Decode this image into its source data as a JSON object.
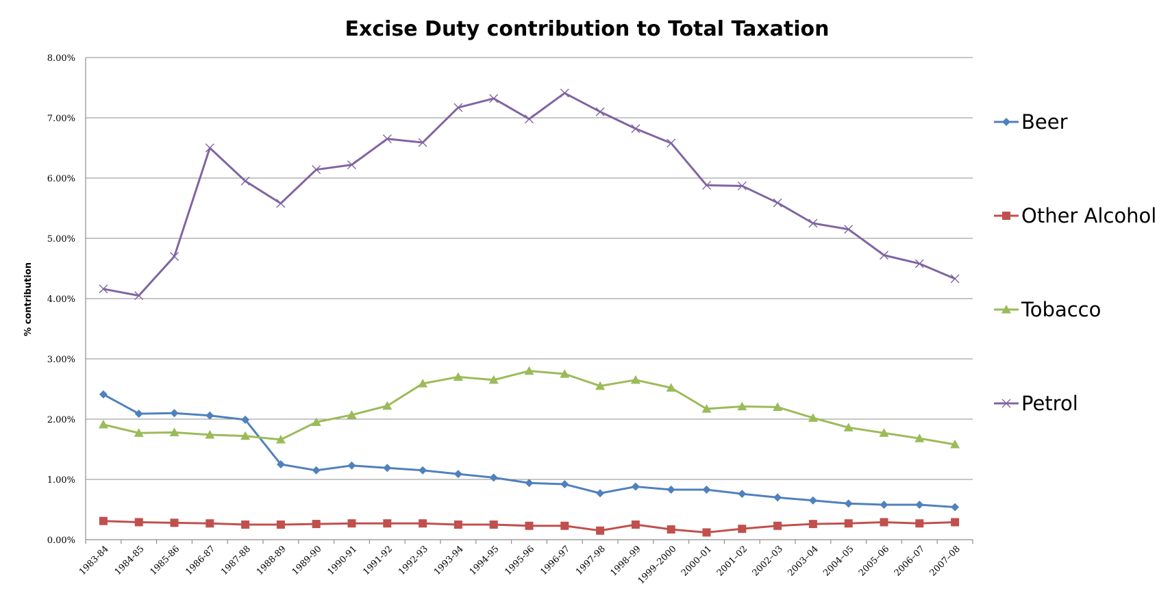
{
  "chart_data": {
    "type": "line",
    "title": "Excise Duty contribution to Total Taxation",
    "xlabel": "",
    "ylabel": "% contribution",
    "ylim": [
      0,
      8
    ],
    "ytick_labels": [
      "0.00%",
      "1.00%",
      "2.00%",
      "3.00%",
      "4.00%",
      "5.00%",
      "6.00%",
      "7.00%",
      "8.00%"
    ],
    "grid": true,
    "legend_position": "right",
    "categories": [
      "1983-84",
      "1984-85",
      "1985-86",
      "1986-87",
      "1987-88",
      "1988-89",
      "1989-90",
      "1990-91",
      "1991-92",
      "1992-93",
      "1993-94",
      "1994-95",
      "1995-96",
      "1996-97",
      "1997-98",
      "1998–99",
      "1999–2000",
      "2000–01",
      "2001–02",
      "2002–03",
      "2003–04",
      "2004–05",
      "2005–06",
      "2006–07",
      "2007–08"
    ],
    "series": [
      {
        "name": "Beer",
        "color": "#4f81bd",
        "marker": "diamond",
        "values": [
          2.41,
          2.09,
          2.1,
          2.06,
          1.99,
          1.25,
          1.15,
          1.23,
          1.19,
          1.15,
          1.09,
          1.03,
          0.94,
          0.92,
          0.77,
          0.88,
          0.83,
          0.83,
          0.76,
          0.7,
          0.65,
          0.6,
          0.58,
          0.58,
          0.54
        ]
      },
      {
        "name": "Other Alcohol",
        "color": "#c0504d",
        "marker": "square",
        "values": [
          0.31,
          0.29,
          0.28,
          0.27,
          0.25,
          0.25,
          0.26,
          0.27,
          0.27,
          0.27,
          0.25,
          0.25,
          0.23,
          0.23,
          0.15,
          0.25,
          0.17,
          0.12,
          0.18,
          0.23,
          0.26,
          0.27,
          0.29,
          0.27,
          0.29
        ]
      },
      {
        "name": "Tobacco",
        "color": "#9bbb59",
        "marker": "triangle",
        "values": [
          1.91,
          1.77,
          1.78,
          1.74,
          1.72,
          1.66,
          1.95,
          2.07,
          2.22,
          2.59,
          2.7,
          2.65,
          2.8,
          2.75,
          2.55,
          2.65,
          2.52,
          2.17,
          2.21,
          2.2,
          2.02,
          1.86,
          1.77,
          1.68,
          1.58
        ]
      },
      {
        "name": "Petrol",
        "color": "#8064a2",
        "marker": "x",
        "values": [
          4.16,
          4.05,
          4.7,
          6.5,
          5.95,
          5.58,
          6.14,
          6.22,
          6.65,
          6.59,
          7.17,
          7.32,
          6.98,
          7.41,
          7.1,
          6.82,
          6.58,
          5.88,
          5.87,
          5.59,
          5.25,
          5.15,
          4.72,
          4.58,
          4.33
        ]
      }
    ]
  }
}
